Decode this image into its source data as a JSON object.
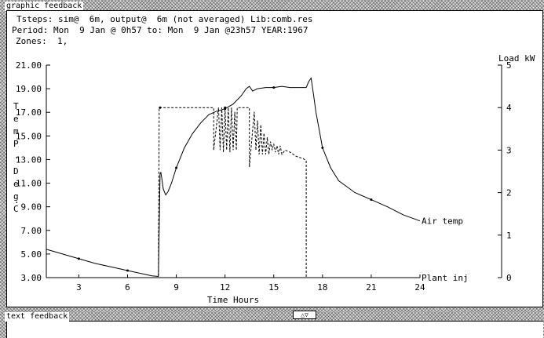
{
  "panels": {
    "graphic_title": "graphic feedback",
    "text_title": "text feedback",
    "toggle_label": "△▽"
  },
  "header": {
    "line1": "Tsteps: sim@  6m, output@  6m (not averaged) Lib:comb.res",
    "line2": "Period: Mon  9 Jan @ 0h57 to: Mon  9 Jan @23h57 YEAR:1967",
    "line3": "Zones:  1,"
  },
  "chart_data": {
    "type": "line",
    "xlabel": "Time Hours",
    "ylabel_left": "TemP. Deg.C",
    "ylabel_left_chars": [
      "T",
      "e",
      "m",
      "P",
      "D",
      "e",
      "g",
      "C"
    ],
    "ylabel_left_dots": [
      ".",
      "."
    ],
    "ylabel_right": "Load kW",
    "xlim": [
      1,
      24
    ],
    "ylim_left": [
      3,
      21
    ],
    "ylim_right": [
      0,
      5
    ],
    "x_ticks": [
      "3",
      "6",
      "9",
      "12",
      "15",
      "18",
      "21",
      "24"
    ],
    "x_tick_values": [
      3,
      6,
      9,
      12,
      15,
      18,
      21,
      24
    ],
    "y_left_ticks": [
      "3.00",
      "5.00",
      "7.00",
      "9.00",
      "11.00",
      "13.00",
      "15.00",
      "17.00",
      "19.00",
      "21.00"
    ],
    "y_left_tick_values": [
      3,
      5,
      7,
      9,
      11,
      13,
      15,
      17,
      19,
      21
    ],
    "y_right_ticks": [
      "0",
      "1",
      "2",
      "3",
      "4",
      "5"
    ],
    "y_right_tick_values": [
      0,
      1,
      2,
      3,
      4,
      5
    ],
    "grid": false,
    "series": [
      {
        "name": "Air temp",
        "axis": "left",
        "style": "solid",
        "x": [
          1,
          2,
          3,
          4,
          5,
          6,
          7,
          7.5,
          7.9,
          8.0,
          8.05,
          8.1,
          8.2,
          8.35,
          8.5,
          8.7,
          9.0,
          9.5,
          10,
          10.5,
          11,
          11.5,
          12,
          12.5,
          13,
          13.3,
          13.5,
          13.7,
          14,
          14.5,
          15,
          15.5,
          16,
          16.5,
          17,
          17.15,
          17.3,
          17.45,
          17.6,
          17.8,
          18,
          18.5,
          19,
          20,
          21,
          22,
          23,
          24
        ],
        "values": [
          5.4,
          5.0,
          4.6,
          4.2,
          3.9,
          3.6,
          3.3,
          3.15,
          3.1,
          11.8,
          11.9,
          11.5,
          10.5,
          10.0,
          10.3,
          11.0,
          12.3,
          14.0,
          15.2,
          16.1,
          16.8,
          17.1,
          17.3,
          17.7,
          18.4,
          19.0,
          19.2,
          18.8,
          19.0,
          19.1,
          19.1,
          19.2,
          19.1,
          19.1,
          19.1,
          19.6,
          19.9,
          18.5,
          17.0,
          15.5,
          14.0,
          12.3,
          11.2,
          10.2,
          9.6,
          9.0,
          8.3,
          7.8
        ]
      },
      {
        "name": "Plant inj",
        "axis": "right",
        "style": "dashed",
        "x": [
          1,
          7.9,
          7.95,
          8.0,
          11.3,
          11.3,
          11.6,
          11.7,
          11.8,
          11.9,
          12.0,
          12.1,
          12.2,
          12.3,
          12.4,
          12.5,
          12.6,
          12.7,
          12.75,
          13.5,
          13.5,
          13.8,
          13.9,
          14.0,
          14.1,
          14.2,
          14.3,
          14.4,
          14.5,
          14.6,
          14.7,
          14.8,
          14.9,
          15.0,
          15.1,
          15.2,
          15.3,
          15.4,
          15.5,
          15.7,
          16.0,
          16.4,
          16.8,
          17.0,
          17.0,
          24
        ],
        "values": [
          0,
          0,
          4.0,
          4.0,
          4.0,
          3.0,
          4.0,
          3.0,
          4.0,
          2.95,
          4.0,
          3.0,
          4.0,
          2.95,
          4.0,
          3.0,
          3.9,
          3.0,
          4.0,
          4.0,
          2.6,
          3.9,
          3.0,
          3.7,
          2.9,
          3.6,
          2.9,
          3.4,
          2.9,
          3.3,
          2.9,
          3.2,
          3.0,
          3.15,
          2.95,
          3.1,
          2.9,
          3.1,
          2.9,
          3.0,
          2.95,
          2.85,
          2.8,
          2.75,
          0,
          0
        ]
      }
    ]
  }
}
